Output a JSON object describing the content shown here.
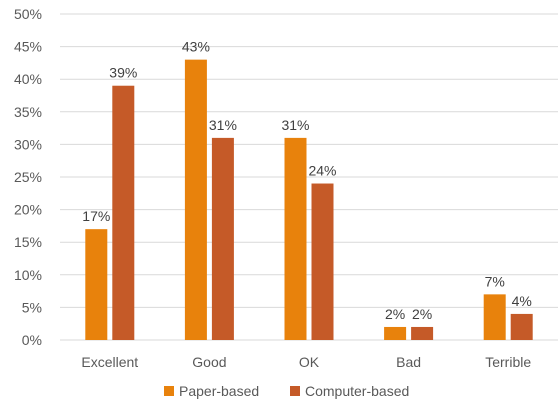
{
  "chart_data": {
    "type": "bar",
    "categories": [
      "Excellent",
      "Good",
      "OK",
      "Bad",
      "Terrible"
    ],
    "series": [
      {
        "name": "Paper-based",
        "values": [
          17,
          43,
          31,
          2,
          7
        ],
        "labels": [
          "17%",
          "43%",
          "31%",
          "2%",
          "7%"
        ],
        "color": "#E8820C"
      },
      {
        "name": "Computer-based",
        "values": [
          39,
          31,
          24,
          2,
          4
        ],
        "labels": [
          "39%",
          "31%",
          "24%",
          "2%",
          "4%"
        ],
        "color": "#C55A28"
      }
    ],
    "ylim": [
      0,
      50
    ],
    "yticks": [
      0,
      5,
      10,
      15,
      20,
      25,
      30,
      35,
      40,
      45,
      50
    ],
    "ytick_labels": [
      "0%",
      "5%",
      "10%",
      "15%",
      "20%",
      "25%",
      "30%",
      "35%",
      "40%",
      "45%",
      "50%"
    ],
    "grid": true,
    "legend_position": "bottom",
    "title": "",
    "xlabel": "",
    "ylabel": ""
  }
}
